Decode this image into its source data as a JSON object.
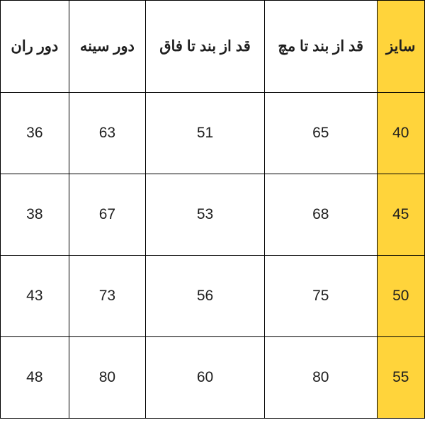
{
  "table": {
    "type": "table",
    "background_color": "#ffffff",
    "highlight_color": "#ffd43b",
    "border_color": "#000000",
    "text_color": "#1f1f1f",
    "header_fontsize": 21,
    "cell_fontsize": 21,
    "columns": [
      {
        "label": "دور ران",
        "highlighted": false
      },
      {
        "label": "دور سینه",
        "highlighted": false
      },
      {
        "label": "قد از بند تا فاق",
        "highlighted": false
      },
      {
        "label": "قد از بند تا مچ",
        "highlighted": false
      },
      {
        "label": "سایز",
        "highlighted": true
      }
    ],
    "rows": [
      {
        "cells": [
          "36",
          "63",
          "51",
          "65",
          "40"
        ]
      },
      {
        "cells": [
          "38",
          "67",
          "53",
          "68",
          "45"
        ]
      },
      {
        "cells": [
          "43",
          "73",
          "56",
          "75",
          "50"
        ]
      },
      {
        "cells": [
          "48",
          "80",
          "60",
          "80",
          "55"
        ]
      }
    ],
    "highlight_col_index": 4
  }
}
